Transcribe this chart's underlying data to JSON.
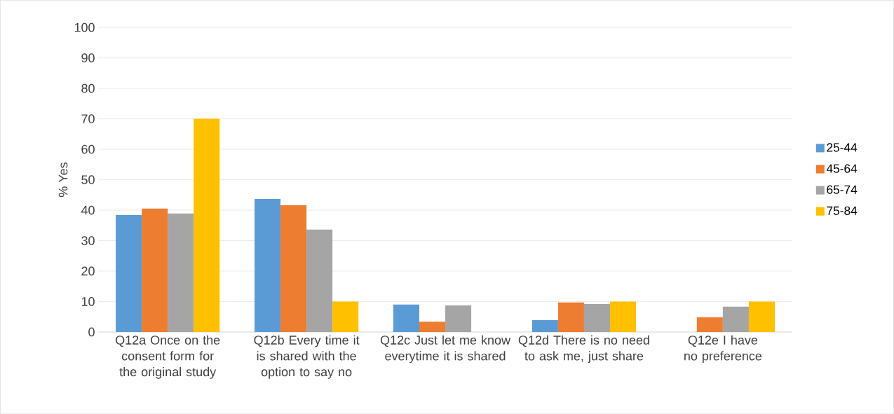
{
  "chart_data": {
    "type": "bar",
    "ylabel": "% Yes",
    "categories": [
      "Q12a Once on the consent form for the original study",
      "Q12b Every time it is shared with the option to say no",
      "Q12c Just let me know everytime it is shared",
      "Q12d There is no need to ask me, just share",
      "Q12e I have no preference"
    ],
    "series": [
      {
        "name": "25-44",
        "color": "#5b9bd5",
        "values": [
          38.4,
          43.7,
          9.0,
          3.9,
          0
        ]
      },
      {
        "name": "45-64",
        "color": "#ed7d31",
        "values": [
          40.5,
          41.6,
          3.4,
          9.7,
          4.8
        ]
      },
      {
        "name": "65-74",
        "color": "#a5a5a5",
        "values": [
          38.9,
          33.6,
          8.7,
          9.2,
          8.3
        ]
      },
      {
        "name": "75-84",
        "color": "#ffc000",
        "values": [
          70,
          10,
          0,
          10,
          10
        ]
      }
    ],
    "ylim": [
      0,
      100
    ],
    "yticks": [
      0,
      10,
      20,
      30,
      40,
      50,
      60,
      70,
      80,
      90,
      100
    ],
    "grid": "y",
    "legend": "right"
  }
}
